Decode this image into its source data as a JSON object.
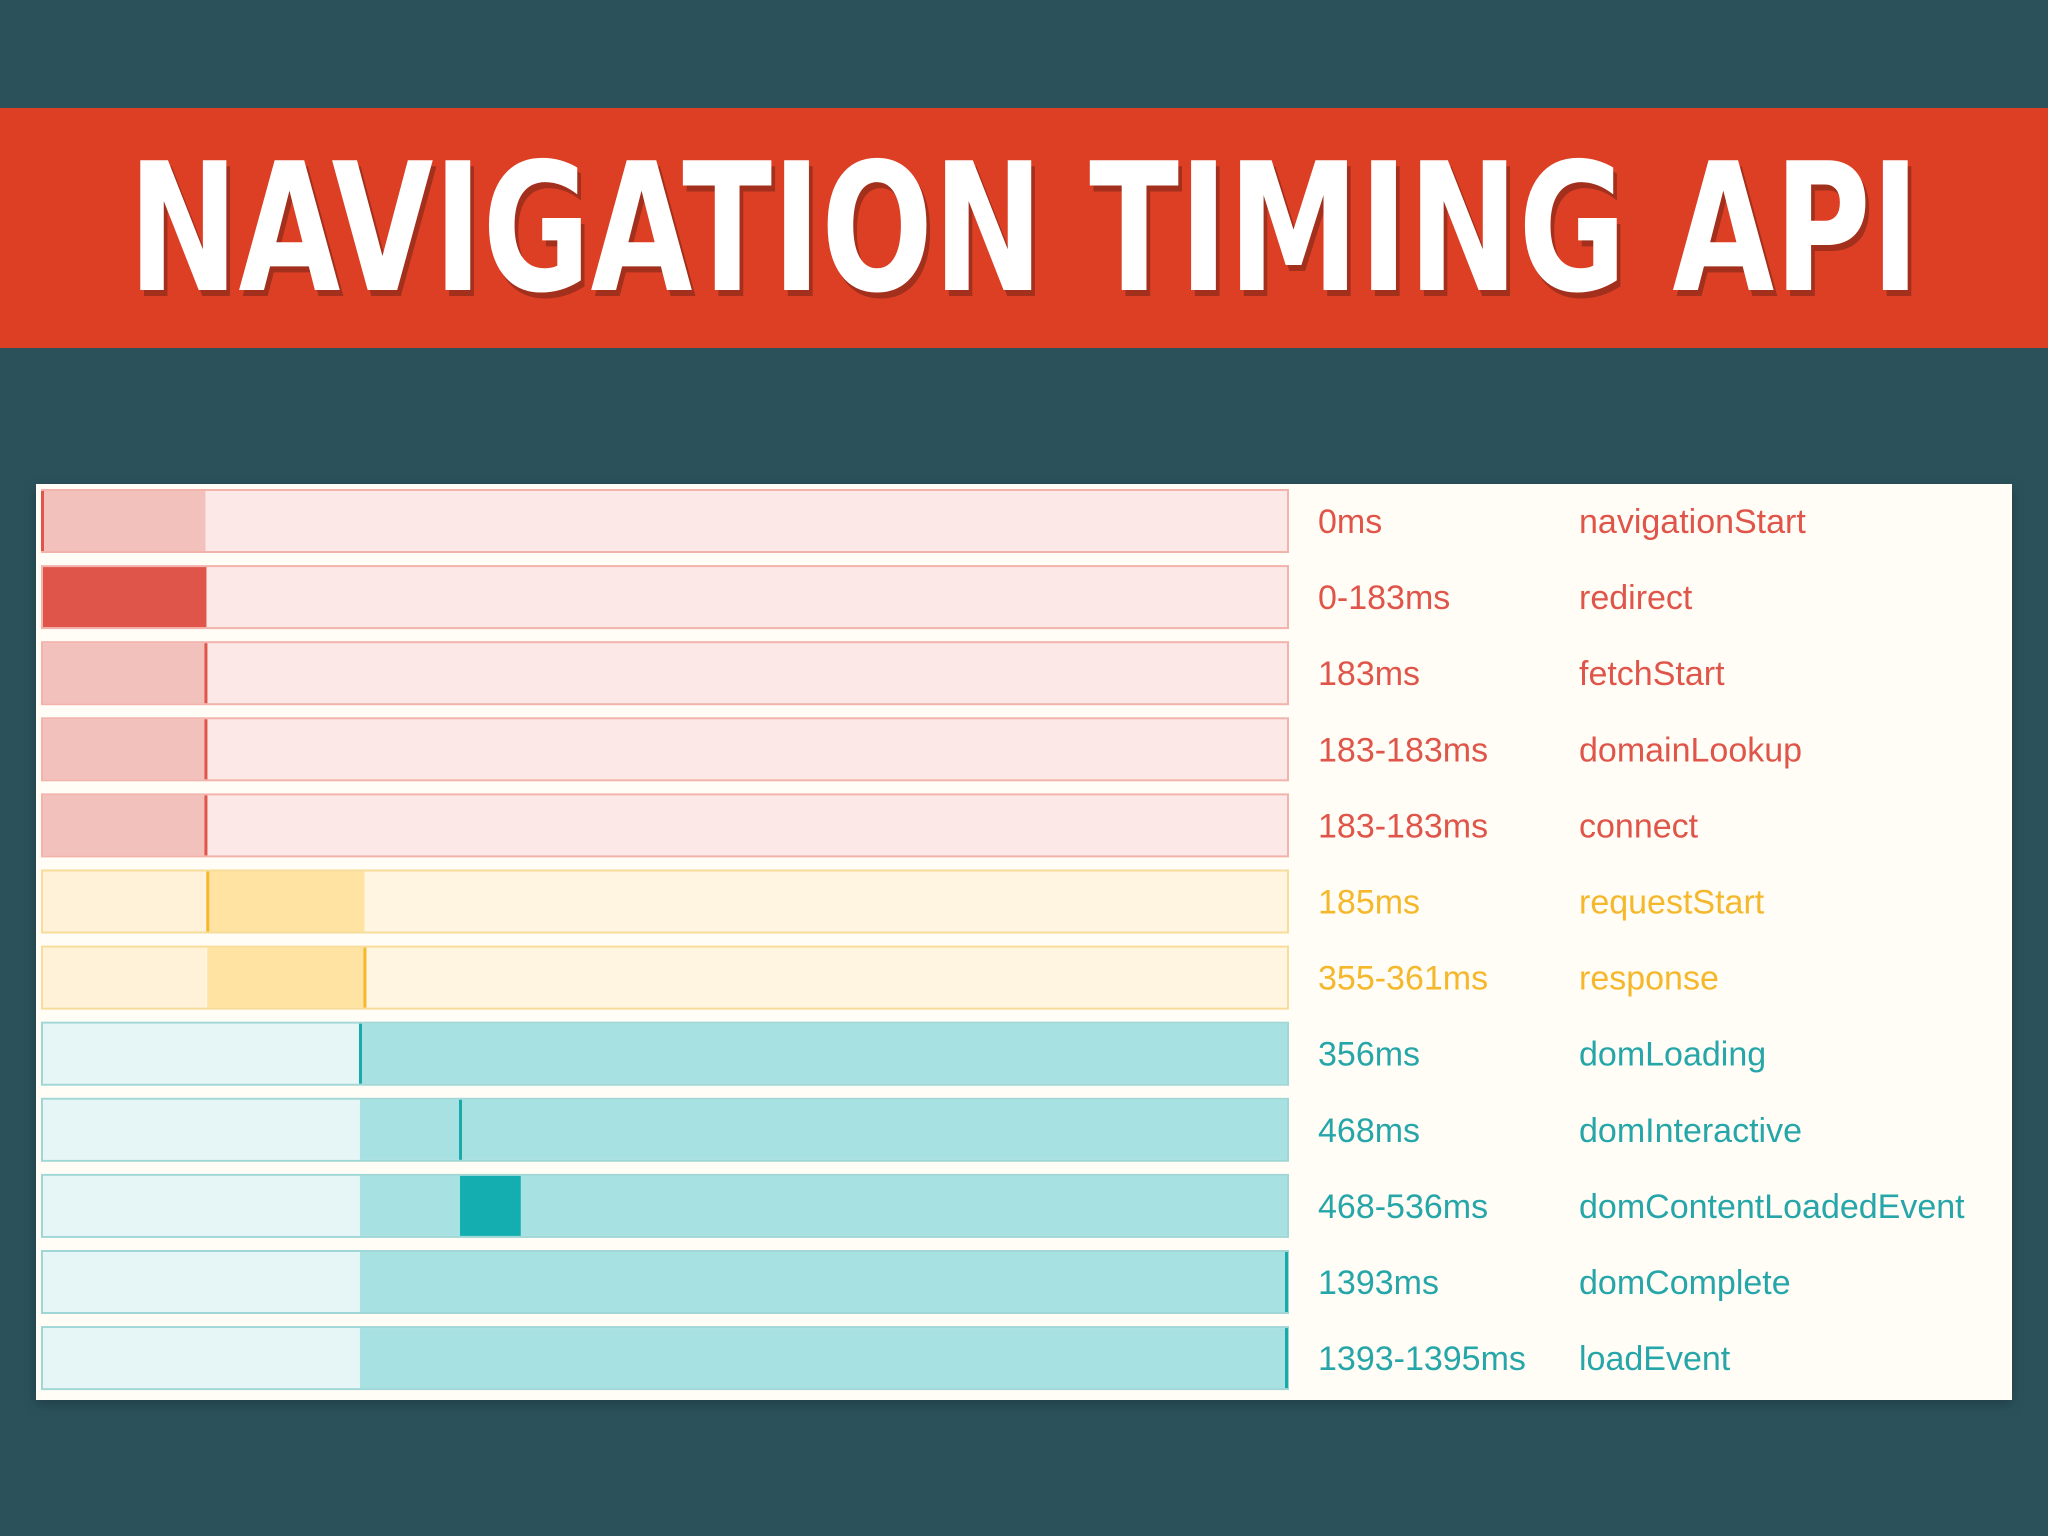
{
  "header": {
    "title": "NAVIGATION TIMING API"
  },
  "colors": {
    "background": "#2b525b",
    "banner": "#dc3f24",
    "panel": "#fffdf6",
    "network": {
      "text": "#e0554a",
      "track": "#fde8e8",
      "border": "#f2b3ad",
      "span": "#f3c1bc",
      "mark": "#e0554a",
      "strong": "#e0554a"
    },
    "server": {
      "text": "#f5b82c",
      "track": "#fff5e0",
      "border": "#f7dc9a",
      "span": "#fee3a3",
      "mark": "#f5b82c",
      "strong": "#f5b82c"
    },
    "processing": {
      "text": "#26a6a9",
      "track": "#e6f5f5",
      "border": "#9fd6d6",
      "span": "#a8e1e1",
      "mark": "#1aa9aa",
      "strong": "#14aeb0"
    }
  },
  "chart_data": {
    "type": "timeline",
    "x_unit": "ms",
    "rows": [
      {
        "time_label": "0ms",
        "event": "navigationStart",
        "group": "network",
        "start": 0,
        "end": 0
      },
      {
        "time_label": "0-183ms",
        "event": "redirect",
        "group": "network",
        "start": 0,
        "end": 183
      },
      {
        "time_label": "183ms",
        "event": "fetchStart",
        "group": "network",
        "start": 183,
        "end": 183
      },
      {
        "time_label": "183-183ms",
        "event": "domainLookup",
        "group": "network",
        "start": 183,
        "end": 183
      },
      {
        "time_label": "183-183ms",
        "event": "connect",
        "group": "network",
        "start": 183,
        "end": 183
      },
      {
        "time_label": "185ms",
        "event": "requestStart",
        "group": "server",
        "start": 185,
        "end": 185
      },
      {
        "time_label": "355-361ms",
        "event": "response",
        "group": "server",
        "start": 355,
        "end": 361
      },
      {
        "time_label": "356ms",
        "event": "domLoading",
        "group": "processing",
        "start": 356,
        "end": 356
      },
      {
        "time_label": "468ms",
        "event": "domInteractive",
        "group": "processing",
        "start": 468,
        "end": 468
      },
      {
        "time_label": "468-536ms",
        "event": "domContentLoadedEvent",
        "group": "processing",
        "start": 468,
        "end": 536
      },
      {
        "time_label": "1393ms",
        "event": "domComplete",
        "group": "processing",
        "start": 1393,
        "end": 1393
      },
      {
        "time_label": "1393-1395ms",
        "event": "loadEvent",
        "group": "processing",
        "start": 1393,
        "end": 1395
      }
    ]
  }
}
